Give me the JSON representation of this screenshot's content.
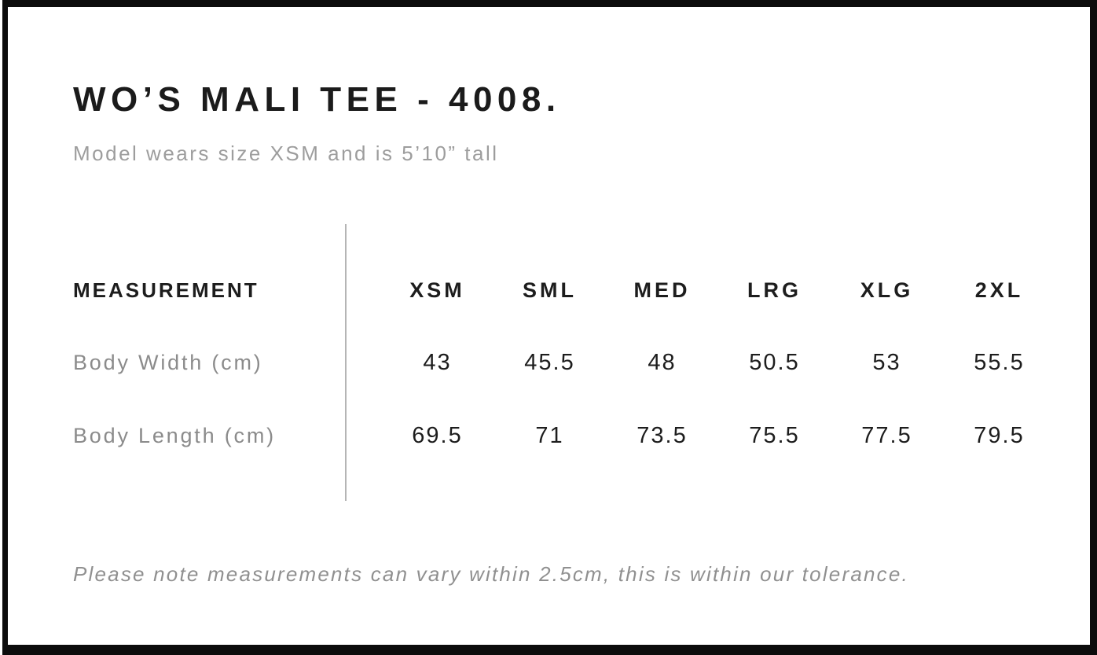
{
  "header": {
    "title": "WO’S MALI TEE - 4008.",
    "subtitle": "Model wears size XSM and is 5’10” tall"
  },
  "table": {
    "label_header": "MEASUREMENT",
    "size_headers": [
      "XSM",
      "SML",
      "MED",
      "LRG",
      "XLG",
      "2XL"
    ],
    "rows": [
      {
        "label": "Body Width (cm)",
        "values": [
          "43",
          "45.5",
          "48",
          "50.5",
          "53",
          "55.5"
        ]
      },
      {
        "label": "Body Length (cm)",
        "values": [
          "69.5",
          "71",
          "73.5",
          "75.5",
          "77.5",
          "79.5"
        ]
      }
    ]
  },
  "footnote": "Please note measurements can vary within 2.5cm, this is within our tolerance.",
  "colors": {
    "frame_border": "#0c0c0c",
    "text_primary": "#1d1d1d",
    "text_muted": "#9d9d9d",
    "divider": "#b5b5b5",
    "background": "#ffffff"
  },
  "chart_data": {
    "type": "table",
    "title": "WO’S MALI TEE - 4008.",
    "categories": [
      "XSM",
      "SML",
      "MED",
      "LRG",
      "XLG",
      "2XL"
    ],
    "series": [
      {
        "name": "Body Width (cm)",
        "values": [
          43,
          45.5,
          48,
          50.5,
          53,
          55.5
        ]
      },
      {
        "name": "Body Length (cm)",
        "values": [
          69.5,
          71,
          73.5,
          75.5,
          77.5,
          79.5
        ]
      }
    ]
  }
}
